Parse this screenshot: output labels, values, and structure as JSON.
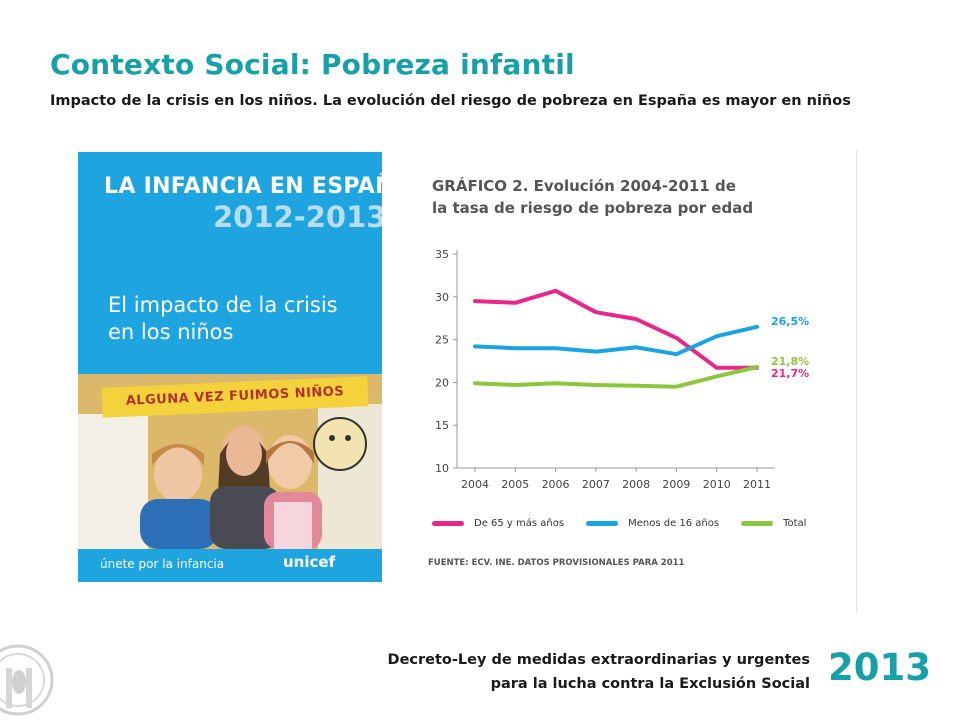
{
  "slide": {
    "title": "Contexto Social: Pobreza infantil",
    "subtitle": "Impacto de la crisis en los niños. La evolución del riesgo de pobreza en España es mayor en niños"
  },
  "cover": {
    "title": "LA INFANCIA EN ESPAÑA",
    "years": "2012-2013",
    "tagline": "El impacto de la crisis en los niños",
    "banner": "ALGUNA VEZ FUIMOS NIÑOS",
    "footer_left": "únete por la infancia",
    "footer_right": "unicef",
    "background_color": "#1ea5e0"
  },
  "chart_data": {
    "type": "line",
    "title": "GRÁFICO 2. Evolución 2004-2011 de la tasa de riesgo de pobreza por edad",
    "title_line1": "GRÁFICO 2. Evolución 2004-2011 de",
    "title_line2": "la tasa de riesgo de pobreza por edad",
    "x": [
      "2004",
      "2005",
      "2006",
      "2007",
      "2008",
      "2009",
      "2010",
      "2011"
    ],
    "ylim": [
      10,
      35
    ],
    "yticks": [
      10,
      15,
      20,
      25,
      30,
      35
    ],
    "grid": false,
    "legend_position": "bottom",
    "series": [
      {
        "name": "De 65 y más años",
        "color": "#e5288a",
        "values": [
          29.5,
          29.3,
          30.7,
          28.2,
          27.4,
          25.2,
          21.7,
          21.7
        ],
        "end_label": "21,7%"
      },
      {
        "name": "Menos de 16 años",
        "color": "#1ba3e0",
        "values": [
          24.2,
          24.0,
          24.0,
          23.6,
          24.1,
          23.3,
          25.4,
          26.5
        ],
        "end_label": "26,5%"
      },
      {
        "name": "Total",
        "color": "#8cc63f",
        "values": [
          19.9,
          19.7,
          19.9,
          19.7,
          19.6,
          19.5,
          20.7,
          21.8
        ],
        "end_label": "21,8%"
      }
    ],
    "source": "FUENTE: ECV. INE. DATOS PROVISIONALES PARA 2011"
  },
  "footer": {
    "line1": "Decreto-Ley de medidas extraordinarias y urgentes",
    "line2": "para la lucha contra la Exclusión Social",
    "year": "2013"
  },
  "colors": {
    "accent": "#17a0a8"
  }
}
